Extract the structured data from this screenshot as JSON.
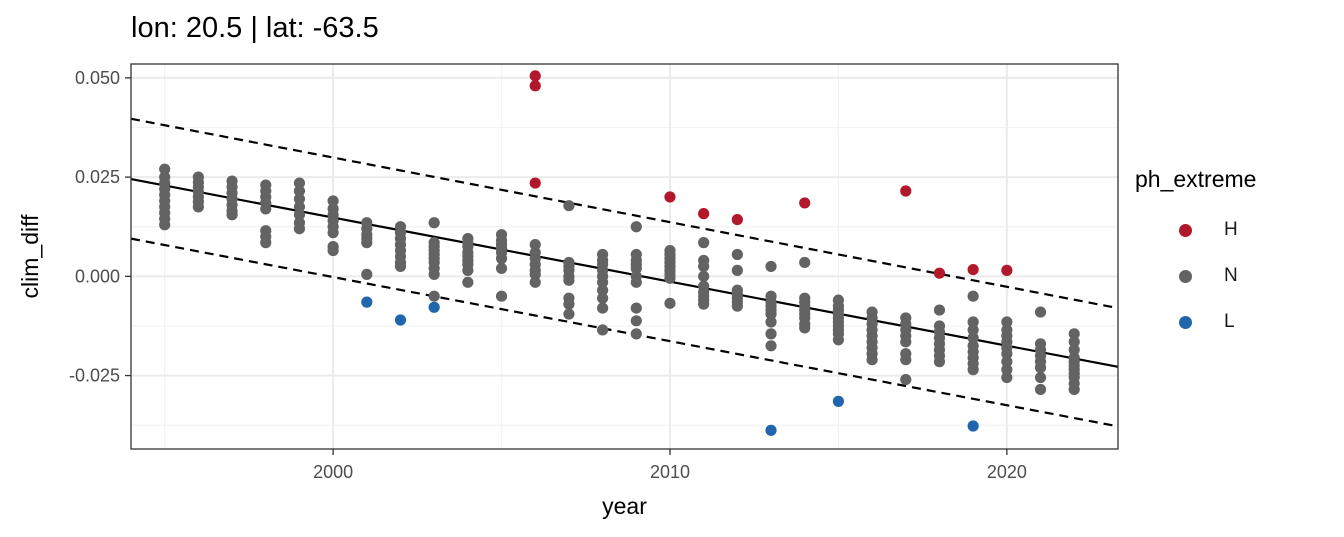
{
  "chart_data": {
    "type": "scatter",
    "title": "lon: 20.5 | lat: -63.5",
    "xlabel": "year",
    "ylabel": "clim_diff",
    "xlim": [
      1994.0,
      2023.3
    ],
    "ylim": [
      -0.0435,
      0.0535
    ],
    "x_ticks": [
      2000,
      2010,
      2020
    ],
    "x_tick_labels": [
      "2000",
      "2010",
      "2020"
    ],
    "y_ticks": [
      0.05,
      0.025,
      0.0,
      -0.025
    ],
    "y_tick_labels": [
      "0.050",
      "0.025",
      "0.000",
      "-0.025"
    ],
    "grid": true,
    "legend": {
      "title": "ph_extreme",
      "position": "right",
      "entries": [
        {
          "label": "H",
          "color": "#b2182b"
        },
        {
          "label": "N",
          "color": "#636363"
        },
        {
          "label": "L",
          "color": "#2166ac"
        }
      ]
    },
    "lines": [
      {
        "kind": "trend",
        "style": "solid",
        "x": [
          1994.0,
          2023.3
        ],
        "y": [
          0.0245,
          -0.0228
        ]
      },
      {
        "kind": "upper_bound",
        "style": "dashed",
        "x": [
          1994.0,
          2023.3
        ],
        "y": [
          0.0397,
          -0.008
        ]
      },
      {
        "kind": "lower_bound",
        "style": "dashed",
        "x": [
          1994.0,
          2023.3
        ],
        "y": [
          0.0095,
          -0.0378
        ]
      }
    ],
    "series": [
      {
        "name": "H",
        "color": "#b2182b",
        "points": [
          [
            2006,
            0.0505
          ],
          [
            2006,
            0.048
          ],
          [
            2006,
            0.0235
          ],
          [
            2010,
            0.02
          ],
          [
            2011,
            0.0158
          ],
          [
            2012,
            0.0143
          ],
          [
            2014,
            0.0185
          ],
          [
            2017,
            0.0215
          ],
          [
            2018,
            0.0008
          ],
          [
            2019,
            0.0017
          ],
          [
            2020,
            0.0015
          ]
        ]
      },
      {
        "name": "N",
        "color": "#636363",
        "points": [
          [
            1995,
            0.027
          ],
          [
            1995,
            0.025
          ],
          [
            1995,
            0.0235
          ],
          [
            1995,
            0.022
          ],
          [
            1995,
            0.0205
          ],
          [
            1995,
            0.019
          ],
          [
            1995,
            0.0175
          ],
          [
            1995,
            0.016
          ],
          [
            1995,
            0.0145
          ],
          [
            1995,
            0.013
          ],
          [
            1996,
            0.025
          ],
          [
            1996,
            0.0237
          ],
          [
            1996,
            0.0225
          ],
          [
            1996,
            0.0213
          ],
          [
            1996,
            0.02
          ],
          [
            1996,
            0.0188
          ],
          [
            1996,
            0.0175
          ],
          [
            1997,
            0.024
          ],
          [
            1997,
            0.0225
          ],
          [
            1997,
            0.021
          ],
          [
            1997,
            0.0195
          ],
          [
            1997,
            0.018
          ],
          [
            1997,
            0.0165
          ],
          [
            1997,
            0.0155
          ],
          [
            1998,
            0.023
          ],
          [
            1998,
            0.0215
          ],
          [
            1998,
            0.02
          ],
          [
            1998,
            0.0185
          ],
          [
            1998,
            0.017
          ],
          [
            1998,
            0.0115
          ],
          [
            1998,
            0.01
          ],
          [
            1998,
            0.0085
          ],
          [
            1999,
            0.0235
          ],
          [
            1999,
            0.0215
          ],
          [
            1999,
            0.0195
          ],
          [
            1999,
            0.0175
          ],
          [
            1999,
            0.0155
          ],
          [
            1999,
            0.0135
          ],
          [
            1999,
            0.012
          ],
          [
            2000,
            0.019
          ],
          [
            2000,
            0.017
          ],
          [
            2000,
            0.0155
          ],
          [
            2000,
            0.014
          ],
          [
            2000,
            0.0125
          ],
          [
            2000,
            0.011
          ],
          [
            2000,
            0.0075
          ],
          [
            2000,
            0.0065
          ],
          [
            2001,
            0.0135
          ],
          [
            2001,
            0.012
          ],
          [
            2001,
            0.0105
          ],
          [
            2001,
            0.0095
          ],
          [
            2001,
            0.0085
          ],
          [
            2001,
            0.0005
          ],
          [
            2002,
            0.0125
          ],
          [
            2002,
            0.011
          ],
          [
            2002,
            0.0095
          ],
          [
            2002,
            0.008
          ],
          [
            2002,
            0.0065
          ],
          [
            2002,
            0.005
          ],
          [
            2002,
            0.0035
          ],
          [
            2002,
            0.0025
          ],
          [
            2003,
            0.0135
          ],
          [
            2003,
            0.0085
          ],
          [
            2003,
            0.0075
          ],
          [
            2003,
            0.0065
          ],
          [
            2003,
            0.0055
          ],
          [
            2003,
            0.0045
          ],
          [
            2003,
            0.0035
          ],
          [
            2003,
            0.002
          ],
          [
            2003,
            0.0005
          ],
          [
            2003,
            -0.005
          ],
          [
            2004,
            0.0095
          ],
          [
            2004,
            0.0085
          ],
          [
            2004,
            0.0075
          ],
          [
            2004,
            0.006
          ],
          [
            2004,
            0.005
          ],
          [
            2004,
            0.004
          ],
          [
            2004,
            0.003
          ],
          [
            2004,
            0.0015
          ],
          [
            2004,
            -0.0015
          ],
          [
            2005,
            0.0105
          ],
          [
            2005,
            0.009
          ],
          [
            2005,
            0.008
          ],
          [
            2005,
            0.007
          ],
          [
            2005,
            0.006
          ],
          [
            2005,
            0.0045
          ],
          [
            2005,
            0.002
          ],
          [
            2005,
            -0.005
          ],
          [
            2006,
            0.008
          ],
          [
            2006,
            0.006
          ],
          [
            2006,
            0.0045
          ],
          [
            2006,
            0.003
          ],
          [
            2006,
            0.0015
          ],
          [
            2006,
            0.0005
          ],
          [
            2006,
            -0.0015
          ],
          [
            2007,
            0.0178
          ],
          [
            2007,
            0.0035
          ],
          [
            2007,
            0.0025
          ],
          [
            2007,
            0.0015
          ],
          [
            2007,
            0.0
          ],
          [
            2007,
            -0.001
          ],
          [
            2007,
            -0.0055
          ],
          [
            2007,
            -0.007
          ],
          [
            2007,
            -0.0095
          ],
          [
            2008,
            0.0055
          ],
          [
            2008,
            0.004
          ],
          [
            2008,
            0.003
          ],
          [
            2008,
            0.0015
          ],
          [
            2008,
            0.0
          ],
          [
            2008,
            -0.0015
          ],
          [
            2008,
            -0.0035
          ],
          [
            2008,
            -0.0055
          ],
          [
            2008,
            -0.008
          ],
          [
            2008,
            -0.0135
          ],
          [
            2009,
            0.0125
          ],
          [
            2009,
            0.0055
          ],
          [
            2009,
            0.004
          ],
          [
            2009,
            0.003
          ],
          [
            2009,
            0.002
          ],
          [
            2009,
            0.0
          ],
          [
            2009,
            -0.0015
          ],
          [
            2009,
            -0.008
          ],
          [
            2009,
            -0.0112
          ],
          [
            2009,
            -0.0145
          ],
          [
            2010,
            0.0065
          ],
          [
            2010,
            0.0055
          ],
          [
            2010,
            0.0045
          ],
          [
            2010,
            0.0035
          ],
          [
            2010,
            0.0025
          ],
          [
            2010,
            0.0015
          ],
          [
            2010,
            0.0005
          ],
          [
            2010,
            -0.0005
          ],
          [
            2010,
            -0.0068
          ],
          [
            2011,
            0.0085
          ],
          [
            2011,
            0.004
          ],
          [
            2011,
            0.0025
          ],
          [
            2011,
            0.0
          ],
          [
            2011,
            -0.0025
          ],
          [
            2011,
            -0.004
          ],
          [
            2011,
            -0.005
          ],
          [
            2011,
            -0.006
          ],
          [
            2011,
            -0.007
          ],
          [
            2012,
            0.0055
          ],
          [
            2012,
            0.0015
          ],
          [
            2012,
            -0.0035
          ],
          [
            2012,
            -0.0045
          ],
          [
            2012,
            -0.0055
          ],
          [
            2012,
            -0.0065
          ],
          [
            2012,
            -0.0075
          ],
          [
            2013,
            0.0025
          ],
          [
            2013,
            -0.005
          ],
          [
            2013,
            -0.0065
          ],
          [
            2013,
            -0.0075
          ],
          [
            2013,
            -0.0085
          ],
          [
            2013,
            -0.0095
          ],
          [
            2013,
            -0.0115
          ],
          [
            2013,
            -0.0145
          ],
          [
            2013,
            -0.0175
          ],
          [
            2014,
            0.0035
          ],
          [
            2014,
            -0.0055
          ],
          [
            2014,
            -0.0065
          ],
          [
            2014,
            -0.0075
          ],
          [
            2014,
            -0.0085
          ],
          [
            2014,
            -0.0095
          ],
          [
            2014,
            -0.0105
          ],
          [
            2014,
            -0.012
          ],
          [
            2014,
            -0.013
          ],
          [
            2015,
            -0.006
          ],
          [
            2015,
            -0.0075
          ],
          [
            2015,
            -0.0085
          ],
          [
            2015,
            -0.0095
          ],
          [
            2015,
            -0.0105
          ],
          [
            2015,
            -0.0115
          ],
          [
            2015,
            -0.0125
          ],
          [
            2015,
            -0.0135
          ],
          [
            2015,
            -0.0145
          ],
          [
            2015,
            -0.016
          ],
          [
            2016,
            -0.009
          ],
          [
            2016,
            -0.0105
          ],
          [
            2016,
            -0.012
          ],
          [
            2016,
            -0.0135
          ],
          [
            2016,
            -0.015
          ],
          [
            2016,
            -0.0165
          ],
          [
            2016,
            -0.018
          ],
          [
            2016,
            -0.0195
          ],
          [
            2016,
            -0.021
          ],
          [
            2017,
            -0.0105
          ],
          [
            2017,
            -0.012
          ],
          [
            2017,
            -0.0135
          ],
          [
            2017,
            -0.015
          ],
          [
            2017,
            -0.0165
          ],
          [
            2017,
            -0.0195
          ],
          [
            2017,
            -0.021
          ],
          [
            2017,
            -0.026
          ],
          [
            2018,
            -0.0085
          ],
          [
            2018,
            -0.0125
          ],
          [
            2018,
            -0.014
          ],
          [
            2018,
            -0.0155
          ],
          [
            2018,
            -0.017
          ],
          [
            2018,
            -0.0185
          ],
          [
            2018,
            -0.02
          ],
          [
            2018,
            -0.0215
          ],
          [
            2019,
            -0.005
          ],
          [
            2019,
            -0.0115
          ],
          [
            2019,
            -0.0135
          ],
          [
            2019,
            -0.0155
          ],
          [
            2019,
            -0.0175
          ],
          [
            2019,
            -0.019
          ],
          [
            2019,
            -0.0205
          ],
          [
            2019,
            -0.022
          ],
          [
            2019,
            -0.0235
          ],
          [
            2020,
            -0.0115
          ],
          [
            2020,
            -0.0135
          ],
          [
            2020,
            -0.015
          ],
          [
            2020,
            -0.0165
          ],
          [
            2020,
            -0.018
          ],
          [
            2020,
            -0.0195
          ],
          [
            2020,
            -0.0215
          ],
          [
            2020,
            -0.0235
          ],
          [
            2020,
            -0.0255
          ],
          [
            2021,
            -0.009
          ],
          [
            2021,
            -0.017
          ],
          [
            2021,
            -0.0185
          ],
          [
            2021,
            -0.02
          ],
          [
            2021,
            -0.0215
          ],
          [
            2021,
            -0.023
          ],
          [
            2021,
            -0.0255
          ],
          [
            2021,
            -0.0285
          ],
          [
            2022,
            -0.0145
          ],
          [
            2022,
            -0.0165
          ],
          [
            2022,
            -0.0185
          ],
          [
            2022,
            -0.0205
          ],
          [
            2022,
            -0.0215
          ],
          [
            2022,
            -0.0225
          ],
          [
            2022,
            -0.0235
          ],
          [
            2022,
            -0.0245
          ],
          [
            2022,
            -0.0255
          ],
          [
            2022,
            -0.027
          ],
          [
            2022,
            -0.0285
          ]
        ]
      },
      {
        "name": "L",
        "color": "#2166ac",
        "points": [
          [
            2001,
            -0.0065
          ],
          [
            2002,
            -0.011
          ],
          [
            2003,
            -0.0078
          ],
          [
            2013,
            -0.0388
          ],
          [
            2015,
            -0.0315
          ],
          [
            2019,
            -0.0377
          ]
        ]
      }
    ]
  }
}
